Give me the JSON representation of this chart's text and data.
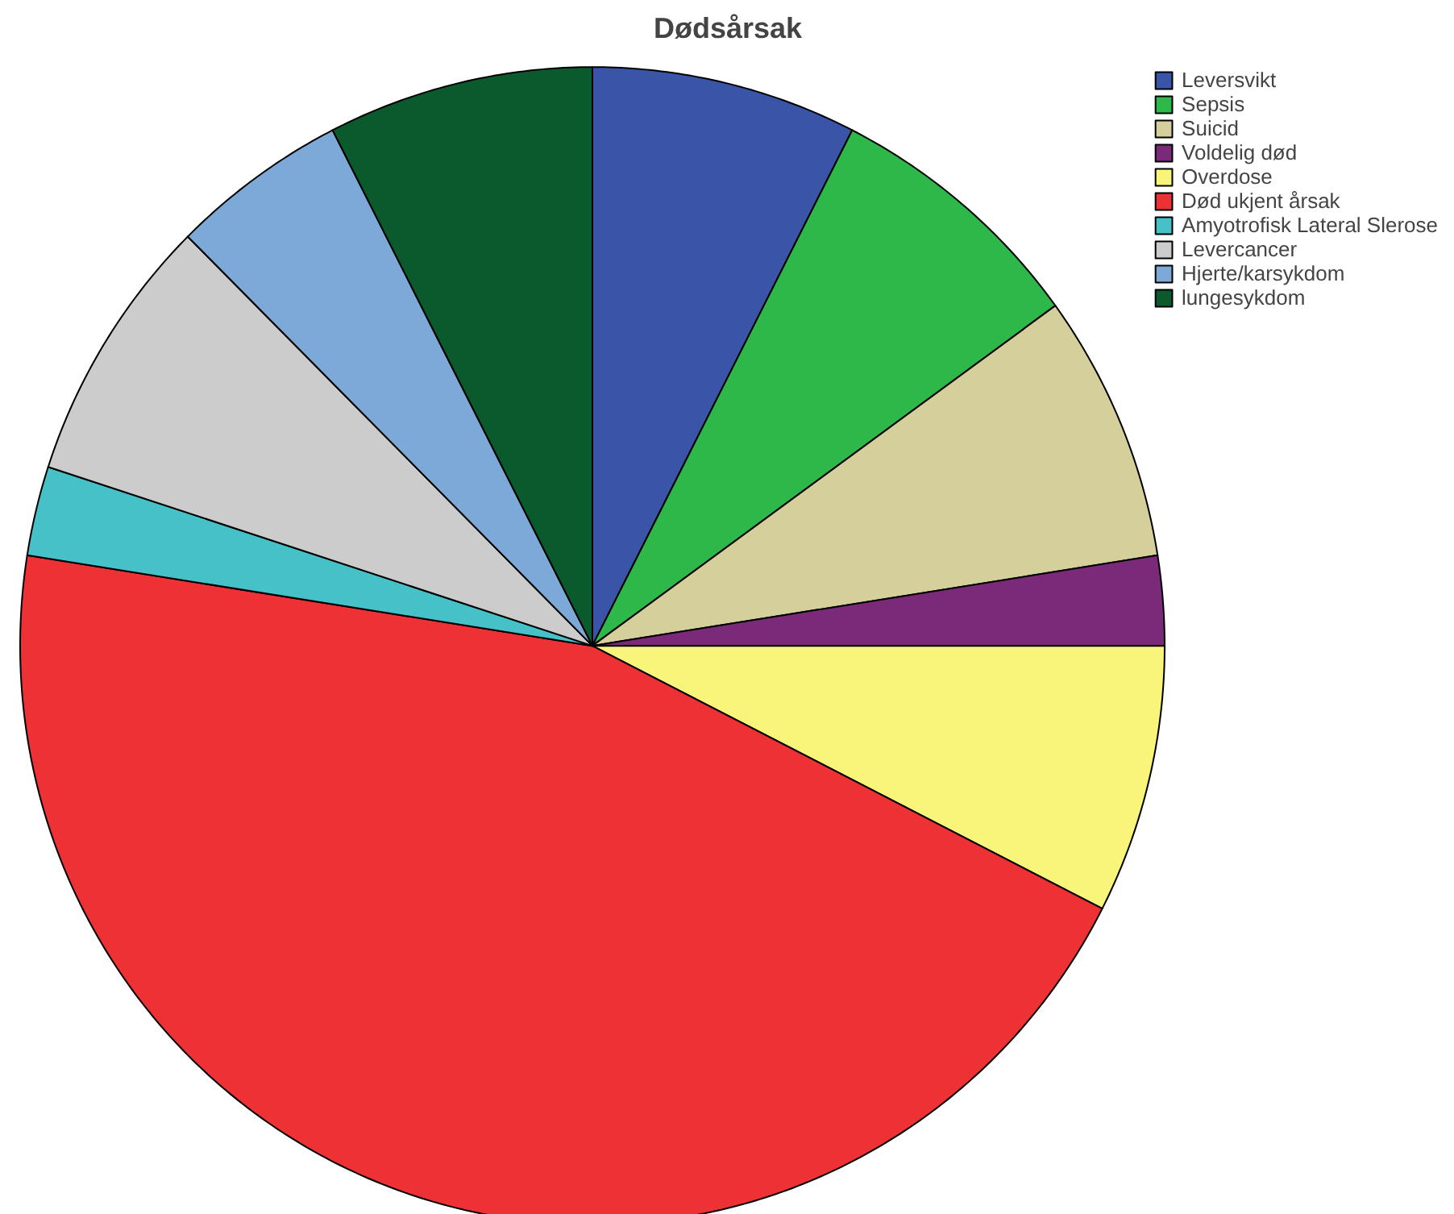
{
  "chart_data": {
    "type": "pie",
    "title": "Dødsårsak",
    "categories": [
      "Leversvikt",
      "Sepsis",
      "Suicid",
      "Voldelig død",
      "Overdose",
      "Død ukjent årsak",
      "Amyotrofisk Lateral Slerose",
      "Levercancer",
      "Hjerte/karsykdom",
      "lungesykdom"
    ],
    "values": [
      7.5,
      7.5,
      7.5,
      2.5,
      7.5,
      45,
      2.5,
      7.5,
      5,
      7.5
    ],
    "colors": [
      "#3a55a8",
      "#2fb84a",
      "#d4cf9b",
      "#7b2a7a",
      "#f8f57a",
      "#ee3135",
      "#46c1c7",
      "#cccccc",
      "#7da9d8",
      "#0b5a2e"
    ],
    "legend": "top right"
  }
}
